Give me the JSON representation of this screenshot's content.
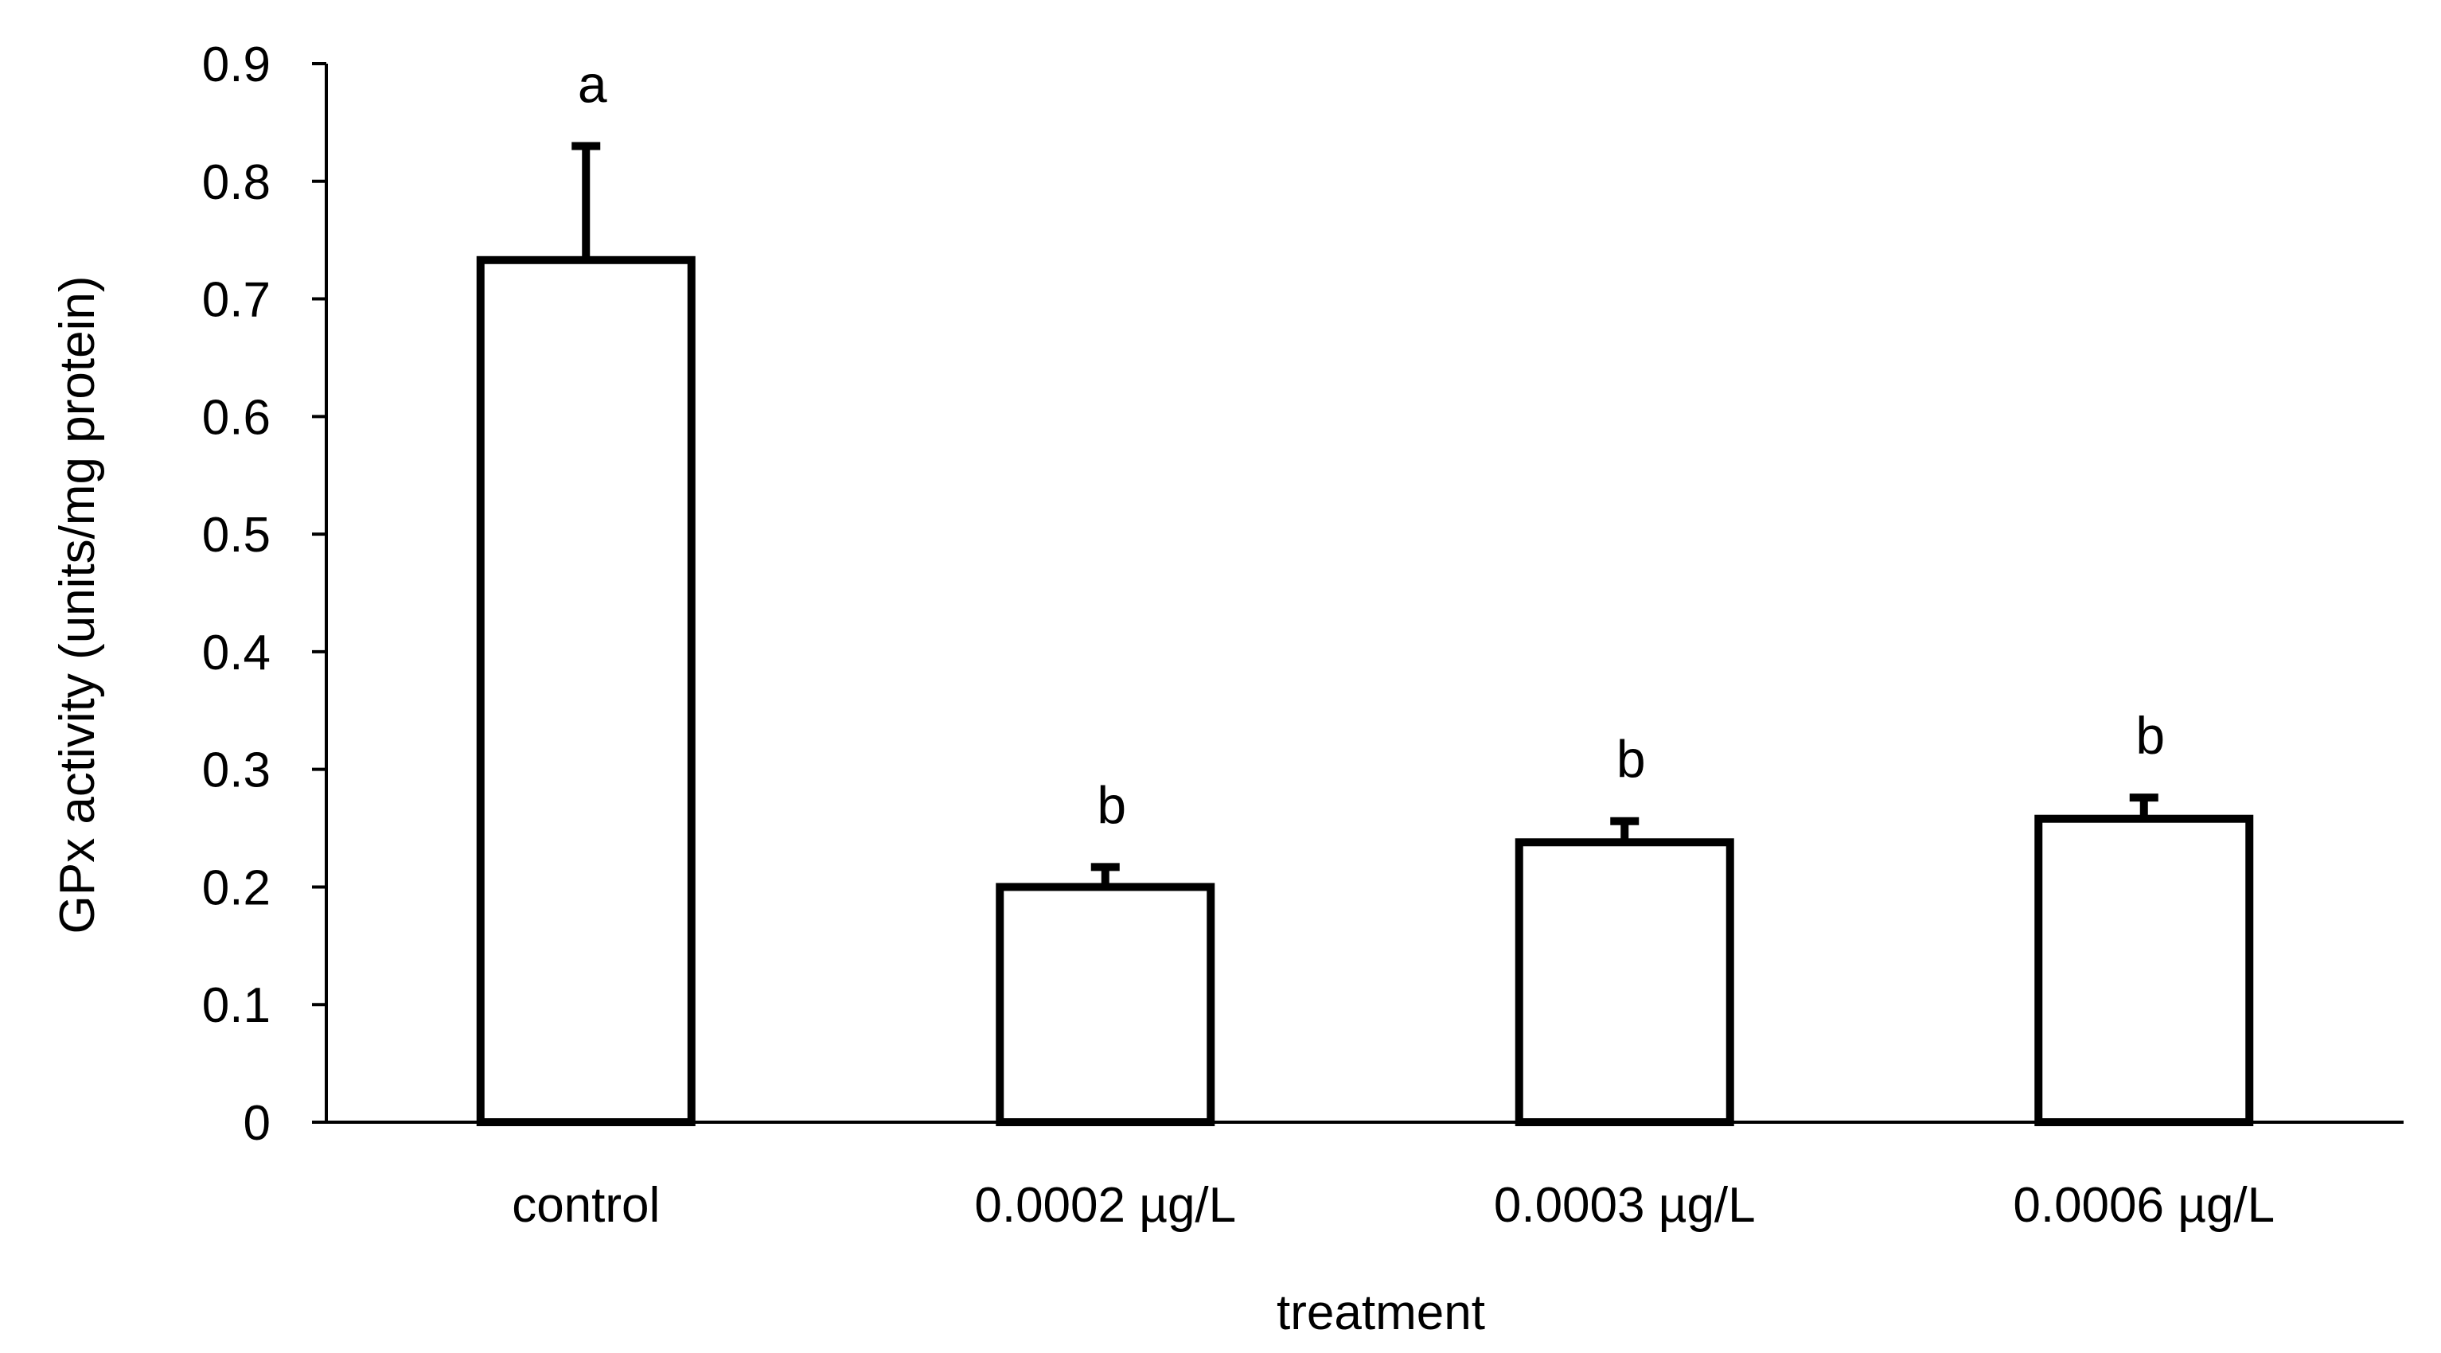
{
  "chart_data": {
    "type": "bar",
    "title": "",
    "xlabel": "treatment",
    "ylabel": "GPx activity (units/mg protein)",
    "categories": [
      "control",
      "0.0002 µg/L",
      "0.0003 µg/L",
      "0.0006 µg/L"
    ],
    "values": [
      0.733,
      0.2,
      0.238,
      0.258
    ],
    "error": [
      0.097,
      0.017,
      0.018,
      0.018
    ],
    "significance": [
      "a",
      "b",
      "b",
      "b"
    ],
    "ylim": [
      0,
      0.9
    ],
    "yticks": [
      "0",
      "0.1",
      "0.2",
      "0.3",
      "0.4",
      "0.5",
      "0.6",
      "0.7",
      "0.8",
      "0.9"
    ],
    "grid": false,
    "legend": "none",
    "colors": {
      "bar_fill": "#ffffff",
      "bar_stroke": "#000000",
      "axis": "#000000"
    }
  }
}
